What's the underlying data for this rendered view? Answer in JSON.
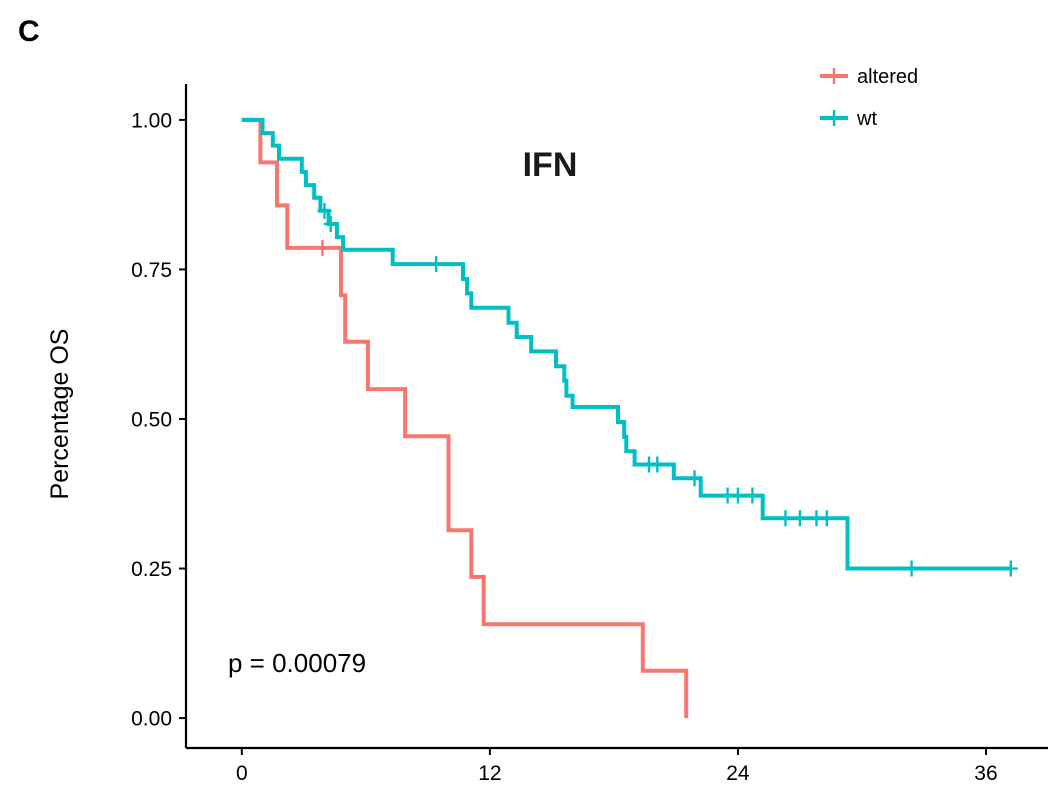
{
  "panel_label": "C",
  "chart_data": {
    "type": "line",
    "subtype": "kaplan-meier",
    "title": "IFN",
    "xlabel": "",
    "ylabel": "Percentage OS",
    "xlim": [
      -2.7,
      39
    ],
    "ylim": [
      -0.05,
      1.06
    ],
    "x_ticks": [
      0,
      12,
      24,
      36
    ],
    "x_tick_labels": [
      "0",
      "12",
      "24",
      "36"
    ],
    "y_ticks": [
      0,
      0.25,
      0.5,
      0.75,
      1.0
    ],
    "y_tick_labels": [
      "0.00",
      "0.25",
      "0.50",
      "0.75",
      "1.00"
    ],
    "grid": false,
    "legend_position": "top-right",
    "annotation": "p = 0.00079",
    "series": [
      {
        "name": "altered",
        "color": "#F8766D",
        "steps": [
          [
            0,
            1.0
          ],
          [
            0.9,
            0.929
          ],
          [
            1.7,
            0.857
          ],
          [
            2.2,
            0.786
          ],
          [
            4.8,
            0.707
          ],
          [
            5.0,
            0.629
          ],
          [
            6.1,
            0.55
          ],
          [
            7.9,
            0.471
          ],
          [
            10.0,
            0.314
          ],
          [
            11.1,
            0.236
          ],
          [
            11.7,
            0.157
          ],
          [
            19.4,
            0.079
          ],
          [
            21.5,
            0.0
          ]
        ],
        "end_x": 21.5,
        "censored": [
          [
            3.9,
            0.786
          ]
        ]
      },
      {
        "name": "wt",
        "color": "#00BFC4",
        "steps": [
          [
            0,
            1.0
          ],
          [
            1.0,
            0.978
          ],
          [
            1.5,
            0.957
          ],
          [
            1.8,
            0.935
          ],
          [
            2.9,
            0.913
          ],
          [
            3.1,
            0.891
          ],
          [
            3.5,
            0.87
          ],
          [
            3.8,
            0.848
          ],
          [
            4.2,
            0.826
          ],
          [
            4.6,
            0.804
          ],
          [
            4.9,
            0.783
          ],
          [
            7.3,
            0.759
          ],
          [
            10.7,
            0.734
          ],
          [
            10.9,
            0.71
          ],
          [
            11.1,
            0.686
          ],
          [
            12.9,
            0.661
          ],
          [
            13.3,
            0.637
          ],
          [
            14.0,
            0.613
          ],
          [
            15.2,
            0.588
          ],
          [
            15.6,
            0.564
          ],
          [
            15.7,
            0.539
          ],
          [
            16.0,
            0.52
          ],
          [
            18.2,
            0.495
          ],
          [
            18.5,
            0.47
          ],
          [
            18.6,
            0.446
          ],
          [
            19.0,
            0.424
          ],
          [
            20.9,
            0.401
          ],
          [
            22.2,
            0.372
          ],
          [
            25.2,
            0.334
          ],
          [
            29.3,
            0.25
          ]
        ],
        "end_x": 37.2,
        "censored": [
          [
            4.0,
            0.848
          ],
          [
            4.3,
            0.826
          ],
          [
            9.4,
            0.759
          ],
          [
            19.7,
            0.424
          ],
          [
            20.1,
            0.424
          ],
          [
            21.9,
            0.401
          ],
          [
            23.5,
            0.372
          ],
          [
            24.0,
            0.372
          ],
          [
            24.7,
            0.372
          ],
          [
            26.3,
            0.334
          ],
          [
            27.0,
            0.334
          ],
          [
            27.8,
            0.334
          ],
          [
            28.3,
            0.334
          ],
          [
            32.4,
            0.25
          ],
          [
            37.2,
            0.25
          ]
        ]
      }
    ]
  }
}
